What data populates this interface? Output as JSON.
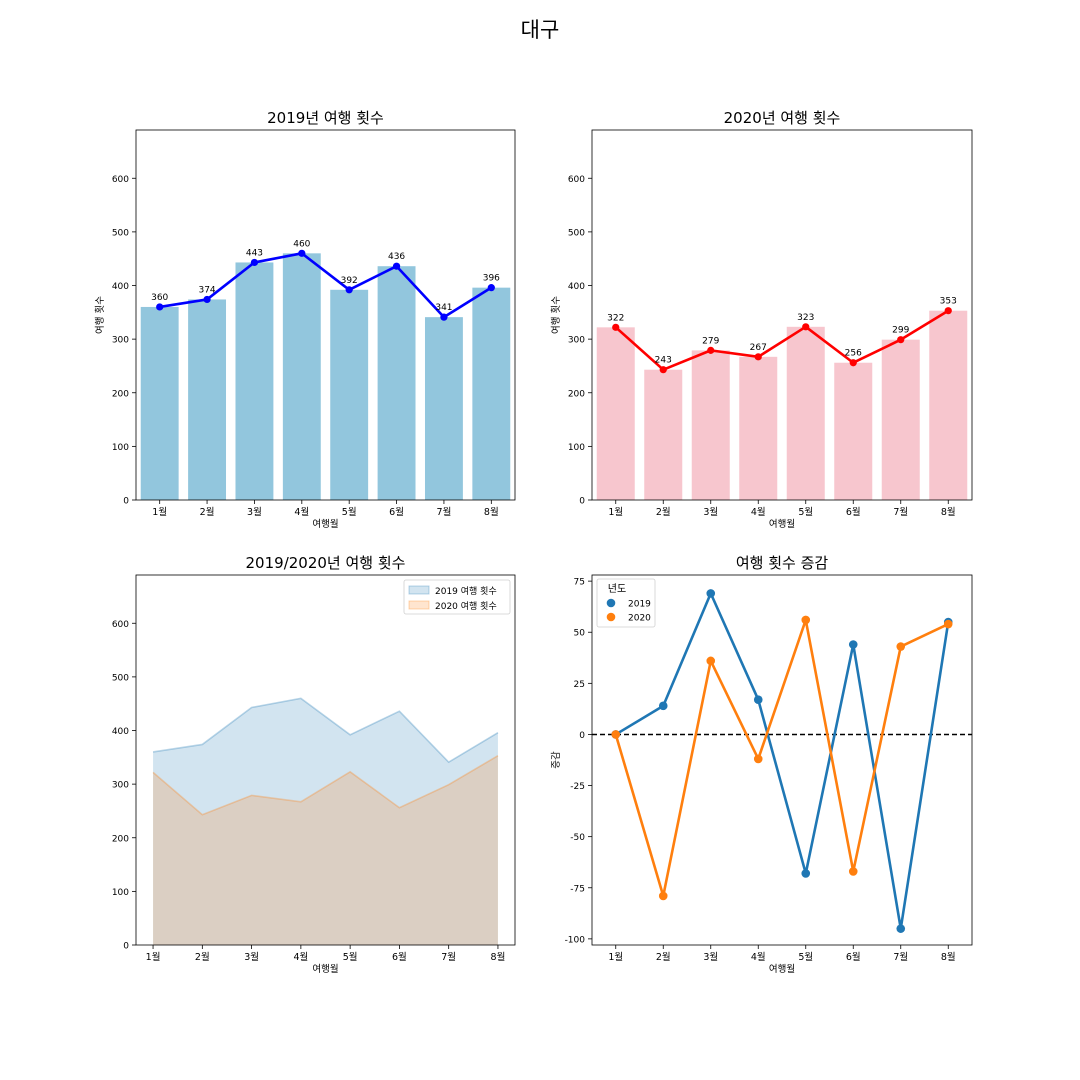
{
  "figure": {
    "suptitle": "대구"
  },
  "chart_data": [
    {
      "type": "bar",
      "title": "2019년 여행 횟수",
      "xlabel": "여행월",
      "ylabel": "여행 횟수",
      "categories": [
        "1월",
        "2월",
        "3월",
        "4월",
        "5월",
        "6월",
        "7월",
        "8월"
      ],
      "values": [
        360,
        374,
        443,
        460,
        392,
        436,
        341,
        396
      ],
      "overlay_line": true,
      "data_labels": true,
      "ylim": [
        0,
        690
      ],
      "yticks": [
        0,
        100,
        200,
        300,
        400,
        500,
        600
      ],
      "bar_color": "#92c6dd",
      "line_color": "#0000ff",
      "grid": false
    },
    {
      "type": "bar",
      "title": "2020년 여행 횟수",
      "xlabel": "여행월",
      "ylabel": "여행 횟수",
      "categories": [
        "1월",
        "2월",
        "3월",
        "4월",
        "5월",
        "6월",
        "7월",
        "8월"
      ],
      "values": [
        322,
        243,
        279,
        267,
        323,
        256,
        299,
        353
      ],
      "overlay_line": true,
      "data_labels": true,
      "ylim": [
        0,
        690
      ],
      "yticks": [
        0,
        100,
        200,
        300,
        400,
        500,
        600
      ],
      "bar_color": "#f7c6ce",
      "line_color": "#ff0000",
      "grid": false
    },
    {
      "type": "area",
      "title": "2019/2020년 여행 횟수",
      "xlabel": "여행월",
      "ylabel": "",
      "categories": [
        "1월",
        "2월",
        "3월",
        "4월",
        "5월",
        "6월",
        "7월",
        "8월"
      ],
      "series": [
        {
          "name": "2019 여행 횟수",
          "values": [
            360,
            374,
            443,
            460,
            392,
            436,
            341,
            396
          ],
          "color": "#1f77b4"
        },
        {
          "name": "2020 여행 횟수",
          "values": [
            322,
            243,
            279,
            267,
            323,
            256,
            299,
            353
          ],
          "color": "#ff7f0e"
        }
      ],
      "ylim": [
        0,
        690
      ],
      "yticks": [
        0,
        100,
        200,
        300,
        400,
        500,
        600
      ],
      "legend": "top-right",
      "grid": false
    },
    {
      "type": "line",
      "title": "여행 횟수 증감",
      "xlabel": "여행월",
      "ylabel": "증감",
      "categories": [
        "1월",
        "2월",
        "3월",
        "4월",
        "5월",
        "6월",
        "7월",
        "8월"
      ],
      "series": [
        {
          "name": "2019",
          "values": [
            0,
            14,
            69,
            17,
            -68,
            44,
            -95,
            55
          ],
          "color": "#1f77b4"
        },
        {
          "name": "2020",
          "values": [
            0,
            -79,
            36,
            -12,
            56,
            -67,
            43,
            54
          ],
          "color": "#ff7f0e"
        }
      ],
      "reference_line": 0,
      "ylim": [
        -103,
        78
      ],
      "yticks": [
        -100,
        -75,
        -50,
        -25,
        0,
        25,
        50,
        75
      ],
      "legend": "top-left",
      "legend_title": "년도",
      "grid": false
    }
  ]
}
